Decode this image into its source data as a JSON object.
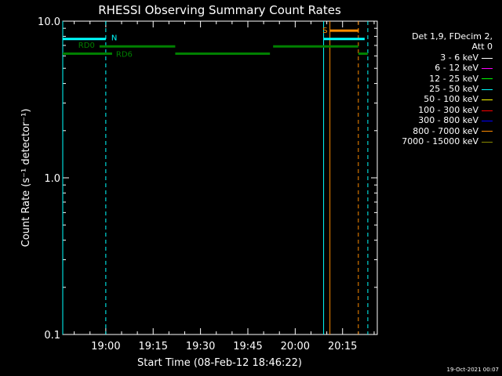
{
  "chart_data": {
    "type": "line",
    "title": "RHESSI Observing Summary Count Rates",
    "xlabel": "Start Time (08-Feb-12 18:46:22)",
    "ylabel": "Count Rate (s⁻¹ detector⁻¹)",
    "yscale": "log",
    "ylim": [
      0.1,
      10.0
    ],
    "xlim": [
      "18:46:22",
      "20:26"
    ],
    "x_ticks": [
      "19:00",
      "19:15",
      "19:30",
      "19:45",
      "20:00",
      "20:15"
    ],
    "y_ticks": [
      "0.1",
      "1.0",
      "10.0"
    ],
    "series": [],
    "state_bars": [
      {
        "label": "N",
        "color": "#00ffff",
        "y": 7.7,
        "segments": [
          [
            "18:46:22",
            "19:00"
          ],
          [
            "20:09",
            "20:22"
          ]
        ]
      },
      {
        "label": "S",
        "color": "#ff8c00",
        "y": 8.7,
        "segments": [
          [
            "20:11",
            "20:20"
          ]
        ]
      },
      {
        "label": "RD0",
        "color": "#008000",
        "y": 6.9,
        "segments": [
          [
            "18:58",
            "19:22"
          ],
          [
            "19:53",
            "20:20"
          ]
        ]
      },
      {
        "label": "RD6",
        "color": "#008000",
        "y": 6.2,
        "segments": [
          [
            "18:46:22",
            "19:02"
          ],
          [
            "19:22",
            "19:52"
          ],
          [
            "20:20",
            "20:23"
          ]
        ]
      }
    ],
    "vlines": [
      {
        "x": "18:46:22",
        "color": "#00ffff",
        "style": "solid"
      },
      {
        "x": "19:00",
        "color": "#00ffff",
        "style": "dashed"
      },
      {
        "x": "20:09",
        "color": "#00ffff",
        "style": "solid"
      },
      {
        "x": "20:11",
        "color": "#ff8c00",
        "style": "solid"
      },
      {
        "x": "20:20",
        "color": "#ff8c00",
        "style": "dashed"
      },
      {
        "x": "20:23",
        "color": "#00ffff",
        "style": "dashed"
      }
    ],
    "legend": {
      "position": "right",
      "header": [
        "Det 1,9, FDecim 2,",
        "Att 0"
      ],
      "entries": [
        {
          "name": "3 - 6 keV",
          "color": "#ffffff"
        },
        {
          "name": "6 - 12 keV",
          "color": "#ff00ff"
        },
        {
          "name": "12 - 25 keV",
          "color": "#00ff00"
        },
        {
          "name": "25 - 50 keV",
          "color": "#00ffff"
        },
        {
          "name": "50 - 100 keV",
          "color": "#ffff00"
        },
        {
          "name": "100 - 300 keV",
          "color": "#ff0000"
        },
        {
          "name": "300 - 800 keV",
          "color": "#0000ff"
        },
        {
          "name": "800 - 7000 keV",
          "color": "#ff8c00"
        },
        {
          "name": "7000 - 15000 keV",
          "color": "#8b8b00"
        }
      ]
    }
  },
  "timestamp": "19-Oct-2021 00:07"
}
